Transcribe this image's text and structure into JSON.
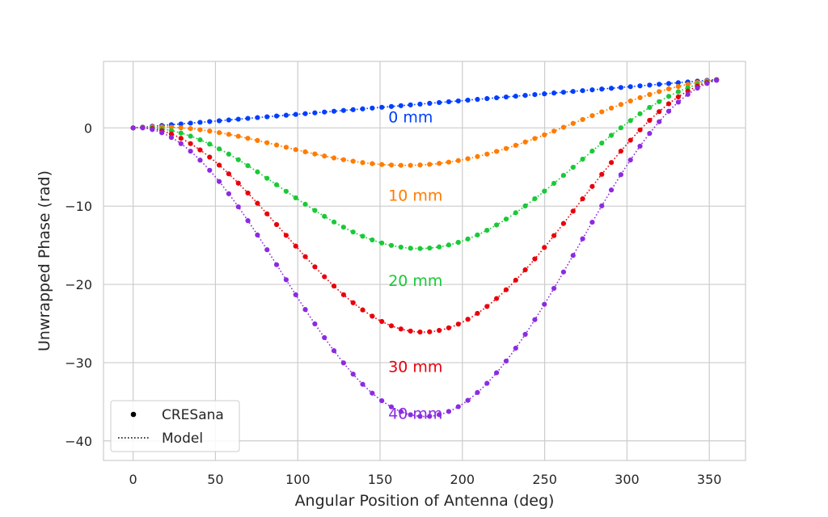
{
  "chart_data": {
    "type": "scatter",
    "xlabel": "Angular Position of Antenna (deg)",
    "ylabel": "Unwrapped Phase (rad)",
    "xlim": [
      -18,
      372
    ],
    "ylim": [
      -42.5,
      8.5
    ],
    "xticks": [
      0,
      50,
      100,
      150,
      200,
      250,
      300,
      350
    ],
    "yticks": [
      0,
      -10,
      -20,
      -30,
      -40
    ],
    "ytick_labels": [
      "0",
      "−10",
      "−20",
      "−30",
      "−40"
    ],
    "grid": true,
    "legend": {
      "placement": "lower-left",
      "entries": [
        {
          "label": "CRESana",
          "marker": "dot"
        },
        {
          "label": "Model",
          "marker": "dotted-line"
        }
      ]
    },
    "x_start": 0,
    "x_end": 354.4,
    "series": [
      {
        "name": "0 mm",
        "color": "#023eff",
        "amplitude": 0,
        "end_value": 6.18,
        "n_points": 62,
        "annotation": {
          "text": "0 mm",
          "x": 155,
          "y": 0.7
        }
      },
      {
        "name": "10 mm",
        "color": "#ff7c00",
        "amplitude": 7.8,
        "end_value": 6.18,
        "n_points": 62,
        "annotation": {
          "text": "10 mm",
          "x": 155,
          "y": -9.3
        }
      },
      {
        "name": "20 mm",
        "color": "#1ac938",
        "amplitude": 18.5,
        "end_value": 6.18,
        "n_points": 62,
        "annotation": {
          "text": "20 mm",
          "x": 155,
          "y": -20.2
        }
      },
      {
        "name": "30 mm",
        "color": "#e8000b",
        "amplitude": 29.2,
        "end_value": 6.18,
        "n_points": 62,
        "annotation": {
          "text": "30 mm",
          "x": 155,
          "y": -31.2
        }
      },
      {
        "name": "40 mm",
        "color": "#8b2be2",
        "amplitude": 40.0,
        "end_value": 6.18,
        "n_points": 62,
        "annotation": {
          "text": "40 mm",
          "x": 155,
          "y": -37.2
        }
      }
    ]
  }
}
